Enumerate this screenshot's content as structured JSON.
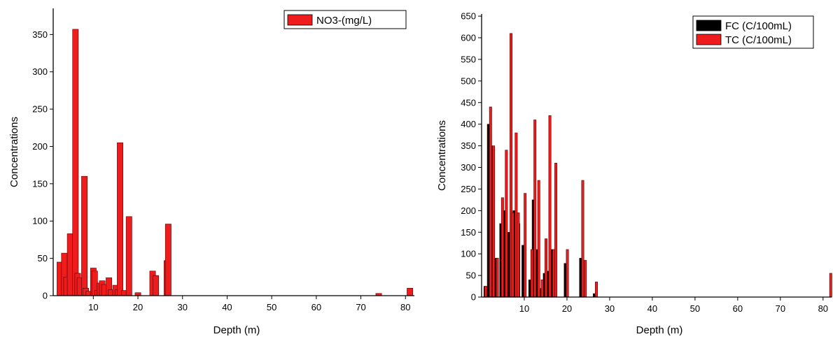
{
  "colors": {
    "red": "#ee1c1c",
    "black": "#000000",
    "bar_stroke": "#5a0000"
  },
  "chart_data": [
    {
      "type": "bar",
      "xlabel": "Depth (m)",
      "ylabel": "Concentrations",
      "xlim": [
        1,
        82
      ],
      "ylim": [
        0,
        385
      ],
      "xticks": [
        10,
        20,
        30,
        40,
        50,
        60,
        70,
        80
      ],
      "yticks": [
        0,
        50,
        100,
        150,
        200,
        250,
        300,
        350
      ],
      "bar_width": 1.3,
      "legend_position": "top-right",
      "series": [
        {
          "name": "NO3-(mg/L)",
          "color": "#ee1c1c",
          "points": [
            [
              2.5,
              45
            ],
            [
              3.5,
              57
            ],
            [
              4,
              25
            ],
            [
              4.8,
              83
            ],
            [
              6,
              357
            ],
            [
              6.5,
              30
            ],
            [
              7,
              24
            ],
            [
              8,
              160
            ],
            [
              8.3,
              10
            ],
            [
              9,
              6
            ],
            [
              10,
              37
            ],
            [
              10.3,
              33
            ],
            [
              11,
              7
            ],
            [
              11.5,
              17
            ],
            [
              12,
              20
            ],
            [
              12.5,
              15
            ],
            [
              13.5,
              24
            ],
            [
              14,
              8
            ],
            [
              15,
              14
            ],
            [
              15.5,
              8
            ],
            [
              16,
              205
            ],
            [
              17,
              7
            ],
            [
              18,
              106
            ],
            [
              20,
              4
            ],
            [
              23.3,
              33
            ],
            [
              24,
              27
            ],
            [
              26.5,
              47
            ],
            [
              26.8,
              96
            ],
            [
              74,
              3
            ],
            [
              81,
              10
            ]
          ]
        }
      ]
    },
    {
      "type": "bar",
      "xlabel": "Depth (m)",
      "ylabel": "Concentrations",
      "xlim": [
        0,
        82
      ],
      "ylim": [
        0,
        655
      ],
      "xticks": [
        10,
        20,
        30,
        40,
        50,
        60,
        70,
        80
      ],
      "yticks": [
        0,
        50,
        100,
        150,
        200,
        250,
        300,
        350,
        400,
        450,
        500,
        550,
        600,
        650
      ],
      "bar_width": 0.55,
      "legend_position": "top-right",
      "series": [
        {
          "name": "FC (C/100mL)",
          "color": "#000000",
          "points": [
            [
              0.8,
              25
            ],
            [
              1.6,
              400
            ],
            [
              2.3,
              350
            ],
            [
              3.3,
              90
            ],
            [
              4.5,
              170
            ],
            [
              5.3,
              200
            ],
            [
              6.4,
              150
            ],
            [
              7.6,
              200
            ],
            [
              8.7,
              170
            ],
            [
              9.7,
              120
            ],
            [
              11.3,
              40
            ],
            [
              12.1,
              225
            ],
            [
              12.9,
              110
            ],
            [
              13.6,
              20
            ],
            [
              14.7,
              55
            ],
            [
              15.6,
              60
            ],
            [
              16.6,
              110
            ],
            [
              19.6,
              78
            ],
            [
              23.2,
              90
            ],
            [
              26.4,
              8
            ]
          ]
        },
        {
          "name": "TC (C/100mL)",
          "color": "#ee1c1c",
          "points": [
            [
              1.0,
              25
            ],
            [
              2.1,
              440
            ],
            [
              2.8,
              350
            ],
            [
              3.7,
              90
            ],
            [
              4.9,
              230
            ],
            [
              5.8,
              340
            ],
            [
              6.9,
              610
            ],
            [
              7.3,
              195
            ],
            [
              8.1,
              380
            ],
            [
              8.6,
              195
            ],
            [
              10.2,
              240
            ],
            [
              11.8,
              110
            ],
            [
              12.5,
              410
            ],
            [
              13.4,
              270
            ],
            [
              14.2,
              40
            ],
            [
              15.1,
              135
            ],
            [
              16.0,
              420
            ],
            [
              16.9,
              110
            ],
            [
              17.4,
              310
            ],
            [
              20.1,
              110
            ],
            [
              23.7,
              270
            ],
            [
              24.3,
              85
            ],
            [
              26.9,
              35
            ],
            [
              81.8,
              55
            ]
          ]
        }
      ]
    }
  ]
}
